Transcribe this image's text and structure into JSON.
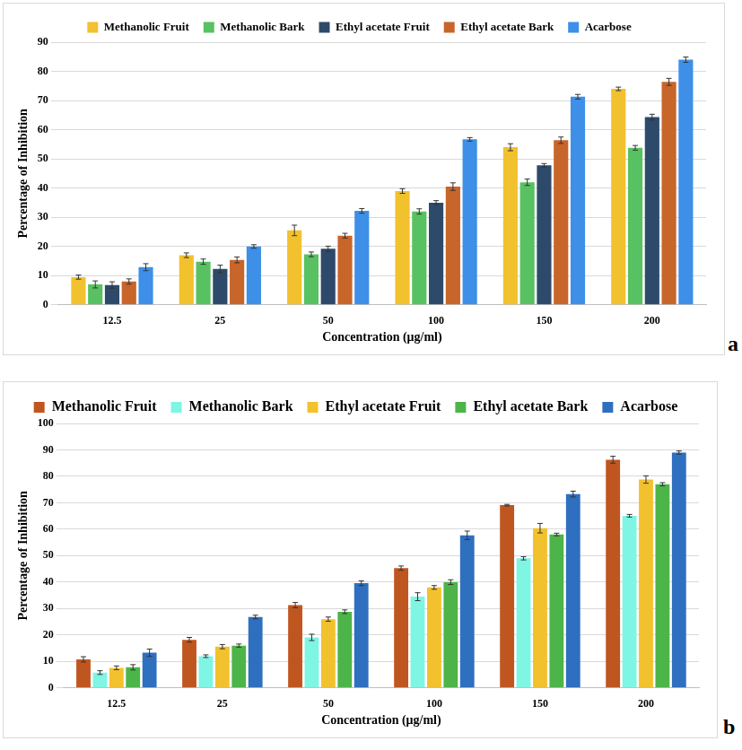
{
  "chart_data": [
    {
      "type": "bar",
      "annotations": [
        "a"
      ],
      "x_label": "Concentration (μg/ml)",
      "y_label": "Percentage of Inhibition",
      "categories": [
        "12.5",
        "25",
        "50",
        "100",
        "150",
        "200"
      ],
      "series": [
        {
          "name": "Methanolic Fruit",
          "color": "#f2c12e",
          "values": [
            9.5,
            17.0,
            25.5,
            39.0,
            54.0,
            74.0
          ],
          "errors": [
            0.7,
            0.8,
            1.8,
            0.8,
            1.2,
            0.6
          ]
        },
        {
          "name": "Methanolic Bark",
          "color": "#58c162",
          "values": [
            7.0,
            14.8,
            17.3,
            32.0,
            42.0,
            53.8
          ],
          "errors": [
            1.2,
            0.9,
            0.8,
            0.9,
            1.1,
            0.8
          ]
        },
        {
          "name": "Ethyl acetate Fruit",
          "color": "#2e4a6b",
          "values": [
            6.8,
            12.3,
            19.2,
            35.0,
            47.8,
            64.3
          ],
          "errors": [
            1.1,
            1.3,
            0.9,
            0.7,
            0.6,
            1.0
          ]
        },
        {
          "name": "Ethyl acetate Bark",
          "color": "#c8652a",
          "values": [
            8.0,
            15.4,
            23.7,
            40.5,
            56.4,
            76.4
          ],
          "errors": [
            0.9,
            1.0,
            0.8,
            1.3,
            1.1,
            1.2
          ]
        },
        {
          "name": "Acarbose",
          "color": "#3d8fe8",
          "values": [
            12.9,
            20.0,
            32.2,
            56.7,
            71.3,
            84.0
          ],
          "errors": [
            1.2,
            0.6,
            0.8,
            0.6,
            0.8,
            0.9
          ]
        }
      ],
      "ylim": [
        0,
        90
      ],
      "yticks": [
        0,
        10,
        20,
        30,
        40,
        50,
        60,
        70,
        80,
        90
      ],
      "grid": true,
      "legend": "top"
    },
    {
      "type": "bar",
      "annotations": [
        "b"
      ],
      "x_label": "Concentration (μg/ml)",
      "y_label": "Percentage of Inhibition",
      "categories": [
        "12.5",
        "25",
        "50",
        "100",
        "150",
        "200"
      ],
      "series": [
        {
          "name": "Methanolic Fruit",
          "color": "#c0561f",
          "values": [
            10.8,
            18.2,
            31.3,
            45.3,
            69.1,
            86.3
          ],
          "errors": [
            1.0,
            0.9,
            1.0,
            0.8,
            0.3,
            1.3
          ]
        },
        {
          "name": "Methanolic Bark",
          "color": "#7ff5e4",
          "values": [
            5.8,
            12.0,
            19.1,
            34.5,
            49.0,
            65.1
          ],
          "errors": [
            0.7,
            0.5,
            1.2,
            1.5,
            0.6,
            0.5
          ]
        },
        {
          "name": "Ethyl acetate Fruit",
          "color": "#f2c12e",
          "values": [
            7.6,
            15.6,
            26.0,
            38.0,
            60.4,
            78.8
          ],
          "errors": [
            0.7,
            0.8,
            0.8,
            0.7,
            1.8,
            1.4
          ]
        },
        {
          "name": "Ethyl acetate Bark",
          "color": "#4db449",
          "values": [
            7.8,
            16.0,
            28.8,
            40.0,
            58.0,
            77.0
          ],
          "errors": [
            1.0,
            0.6,
            0.7,
            0.9,
            0.5,
            0.6
          ]
        },
        {
          "name": "Acarbose",
          "color": "#2f6fbf",
          "values": [
            13.3,
            26.8,
            39.6,
            57.7,
            73.3,
            89.0
          ],
          "errors": [
            1.4,
            0.7,
            0.9,
            1.6,
            1.1,
            0.6
          ]
        }
      ],
      "ylim": [
        0,
        100
      ],
      "yticks": [
        0,
        10,
        20,
        30,
        40,
        50,
        60,
        70,
        80,
        90,
        100
      ],
      "grid": true,
      "legend": "top"
    }
  ]
}
